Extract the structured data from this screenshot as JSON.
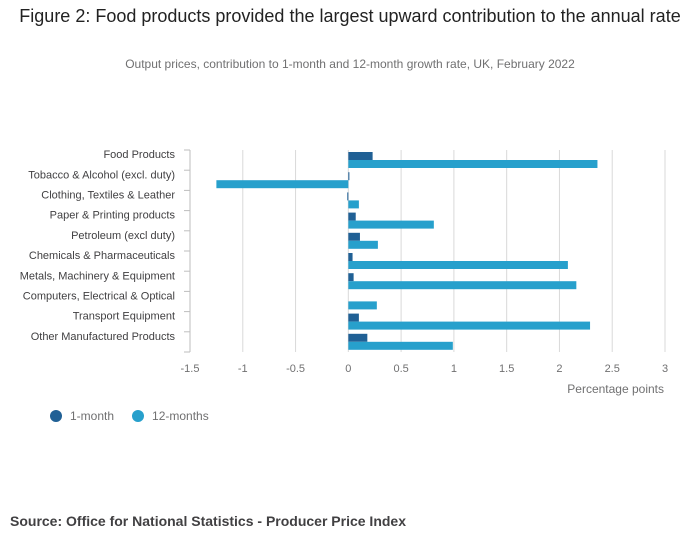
{
  "header": {
    "title": "Figure 2: Food products provided the largest upward contribution to the annual rate",
    "subtitle": "Output prices, contribution to 1-month and 12-month growth rate, UK, February 2022"
  },
  "colors": {
    "one_month": "#206095",
    "twelve_months": "#27a0cc",
    "grid": "#d9d9d9",
    "axis": "#bebebe"
  },
  "legend": {
    "one_month_label": "1-month",
    "twelve_months_label": "12-months"
  },
  "source": "Source: Office for National Statistics - Producer Price Index",
  "chart_data": {
    "type": "bar",
    "orientation": "horizontal",
    "categories": [
      "Food Products",
      "Tobacco & Alcohol (excl. duty)",
      "Clothing, Textiles & Leather",
      "Paper & Printing products",
      "Petroleum (excl duty)",
      "Chemicals & Pharmaceuticals",
      "Metals, Machinery & Equipment",
      "Computers, Electrical & Optical",
      "Transport Equipment",
      "Other Manufactured Products"
    ],
    "series": [
      {
        "name": "1-month",
        "values": [
          0.23,
          0.01,
          -0.01,
          0.07,
          0.11,
          0.04,
          0.05,
          0.0,
          0.1,
          0.18
        ]
      },
      {
        "name": "12-months",
        "values": [
          2.36,
          -1.25,
          0.1,
          0.81,
          0.28,
          2.08,
          2.16,
          0.27,
          2.29,
          0.99
        ]
      }
    ],
    "xlabel": "Percentage points",
    "xlim": [
      -1.5,
      3
    ],
    "xticks": [
      -1.5,
      -1,
      -0.5,
      0,
      0.5,
      1,
      1.5,
      2,
      2.5,
      3
    ],
    "xtick_labels": [
      "-1.5",
      "-1",
      "-0.5",
      "0",
      "0.5",
      "1",
      "1.5",
      "2",
      "2.5",
      "3"
    ],
    "grid": true,
    "legend_position": "bottom-left"
  }
}
